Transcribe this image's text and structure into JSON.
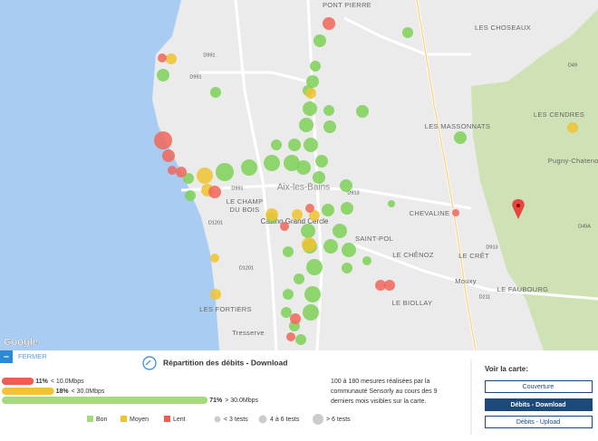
{
  "map": {
    "places": [
      "PONT PIERRE",
      "LES CHOSEAUX",
      "LES MASSONNATS",
      "LES CENDRES",
      "Pugny-Chatenod",
      "LE CHAMP",
      "DU BOIS",
      "Aix-les-Bains",
      "Casino Grand Cercle",
      "CHEVALINE",
      "SAINT-POL",
      "LE CHÊNOZ",
      "LE CRÊT",
      "Mouxy",
      "LE BIOLLAY",
      "LE FAUBOURG",
      "LES FORTIERS",
      "Tresserve"
    ],
    "roads": [
      "D991",
      "D1201",
      "D913",
      "D49",
      "D211",
      "D49A",
      "D991",
      "D1201",
      "D913",
      "D991"
    ],
    "logo": "Google"
  },
  "panel": {
    "close": "FERMER",
    "title": "Répartition des débits - Download",
    "bars": [
      {
        "value": 11,
        "value_label": "11%",
        "threshold": "< 10.0Mbps",
        "color": "#f25b4f"
      },
      {
        "value": 18,
        "value_label": "18%",
        "threshold": "< 30.0Mbps",
        "color": "#f0c330"
      },
      {
        "value": 71,
        "value_label": "71%",
        "threshold": "> 30.0Mbps",
        "color": "#a5db7d"
      }
    ],
    "legend": [
      "Bon",
      "Moyen",
      "Lent",
      "< 3 tests",
      "4 à 6 tests",
      "> 6 tests"
    ],
    "description": [
      "100 à 180 mesures réalisées par la",
      "communauté Sensorly au cours des 9",
      "derniers mois visibles sur la carte."
    ],
    "view_title": "Voir la carte:",
    "buttons": [
      "Couverture",
      "Débits - Download",
      "Débits - Upload"
    ]
  }
}
